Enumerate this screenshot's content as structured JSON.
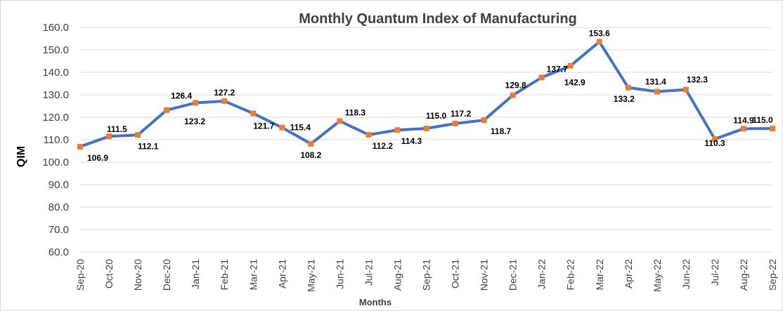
{
  "chart_data": {
    "type": "line",
    "title": "Monthly Quantum Index of Manufacturing",
    "xlabel": "Months",
    "ylabel": "QIM",
    "ylim": [
      60,
      160
    ],
    "ytick_step": 10,
    "yticks": [
      "60.0",
      "70.0",
      "80.0",
      "90.0",
      "100.0",
      "110.0",
      "120.0",
      "130.0",
      "140.0",
      "150.0",
      "160.0"
    ],
    "grid": true,
    "legend": "none",
    "categories": [
      "Sep-20",
      "Oct-20",
      "Nov-20",
      "Dec-20",
      "Jan-21",
      "Feb-21",
      "Mar-21",
      "Apr-21",
      "May-21",
      "Jun-21",
      "Jul-21",
      "Aug-21",
      "Sep-21",
      "Oct-21",
      "Nov-21",
      "Dec-21",
      "Jan-22",
      "Feb-22",
      "Mar-22",
      "Apr-22",
      "May-22",
      "Jun-22",
      "Jul-22",
      "Aug-22",
      "Sep-22"
    ],
    "values": [
      106.9,
      111.5,
      112.1,
      123.2,
      126.4,
      127.2,
      121.7,
      115.4,
      108.2,
      118.3,
      112.2,
      114.3,
      115.0,
      117.2,
      118.7,
      129.8,
      137.7,
      142.9,
      153.6,
      133.2,
      131.4,
      132.3,
      110.3,
      114.9,
      115.0
    ],
    "labels": [
      "106.9",
      "111.5",
      "112.1",
      "123.2",
      "126.4",
      "127.2",
      "121.7",
      "115.4",
      "108.2",
      "118.3",
      "112.2",
      "114.3",
      "115.0",
      "117.2",
      "118.7",
      "129.8",
      "137.7",
      "142.9",
      "153.6",
      "133.2",
      "131.4",
      "132.3",
      "110.3",
      "114.9",
      "115.0"
    ],
    "line_color": "#4472c4",
    "marker_color": "#ed7d31"
  }
}
